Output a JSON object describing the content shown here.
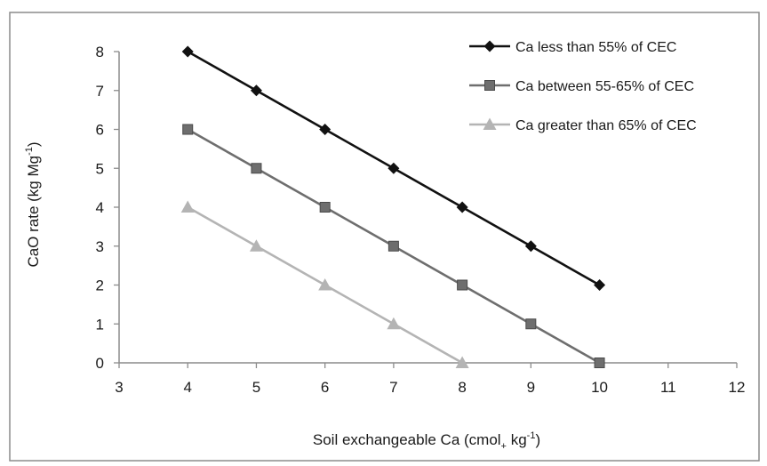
{
  "chart_data": {
    "type": "line",
    "xlabel": "Soil exchangeable Ca (cmol",
    "xlabel_sub": "+",
    "xlabel_unit": " kg",
    "xlabel_sup": "-1",
    "xlabel_close": ")",
    "ylabel": "CaO rate (kg Mg",
    "ylabel_sup": "-1",
    "ylabel_close": ")",
    "xlim": [
      3,
      12
    ],
    "ylim": [
      0,
      8
    ],
    "x_ticks": [
      "3",
      "4",
      "5",
      "6",
      "7",
      "8",
      "9",
      "10",
      "11",
      "12"
    ],
    "y_ticks": [
      "0",
      "1",
      "2",
      "3",
      "4",
      "5",
      "6",
      "7",
      "8"
    ],
    "grid": false,
    "legend_position": "top-right",
    "series": [
      {
        "name": "Ca less than 55% of CEC",
        "color": "#111111",
        "marker": "diamond",
        "x": [
          4,
          5,
          6,
          7,
          8,
          9,
          10
        ],
        "y": [
          8,
          7,
          6,
          5,
          4,
          3,
          2
        ]
      },
      {
        "name": "Ca between 55-65% of CEC",
        "color": "#6e6e6e",
        "marker": "square",
        "x": [
          4,
          5,
          6,
          7,
          8,
          9,
          10
        ],
        "y": [
          6,
          5,
          4,
          3,
          2,
          1,
          0
        ]
      },
      {
        "name": "Ca greater than 65% of CEC",
        "color": "#b4b4b4",
        "marker": "triangle",
        "x": [
          4,
          5,
          6,
          7,
          8
        ],
        "y": [
          4,
          3,
          2,
          1,
          0
        ]
      }
    ]
  }
}
